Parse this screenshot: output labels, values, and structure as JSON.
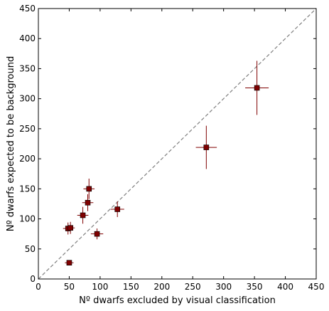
{
  "chart_data": {
    "type": "scatter",
    "xlabel": "Nº dwarfs excluded by visual classification",
    "ylabel": "Nº dwarfs expected to be background",
    "xlim": [
      0,
      450
    ],
    "ylim": [
      0,
      450
    ],
    "xticks": [
      "0",
      "50",
      "100",
      "150",
      "200",
      "250",
      "300",
      "350",
      "400",
      "450"
    ],
    "yticks": [
      "0",
      "50",
      "100",
      "150",
      "200",
      "250",
      "300",
      "350",
      "400",
      "450"
    ],
    "grid": false,
    "reference_line": {
      "style": "dashed",
      "color": "#808080",
      "x": [
        0,
        450
      ],
      "y": [
        0,
        450
      ]
    },
    "marker_color": "#800000",
    "errorbar_color": "#800000",
    "points": [
      {
        "x": 50,
        "y": 27,
        "xerr": 7,
        "yerr": 0
      },
      {
        "x": 48,
        "y": 84,
        "xerr": 8,
        "yerr": 10
      },
      {
        "x": 52,
        "y": 85,
        "xerr": 7,
        "yerr": 10
      },
      {
        "x": 72,
        "y": 106,
        "xerr": 9,
        "yerr": 14
      },
      {
        "x": 80,
        "y": 127,
        "xerr": 9,
        "yerr": 14
      },
      {
        "x": 82,
        "y": 150,
        "xerr": 9,
        "yerr": 17
      },
      {
        "x": 95,
        "y": 75,
        "xerr": 10,
        "yerr": 9
      },
      {
        "x": 128,
        "y": 116,
        "xerr": 11,
        "yerr": 13
      },
      {
        "x": 272,
        "y": 219,
        "xerr": 17,
        "yerr": 36
      },
      {
        "x": 354,
        "y": 318,
        "xerr": 19,
        "yerr": 45
      }
    ]
  }
}
